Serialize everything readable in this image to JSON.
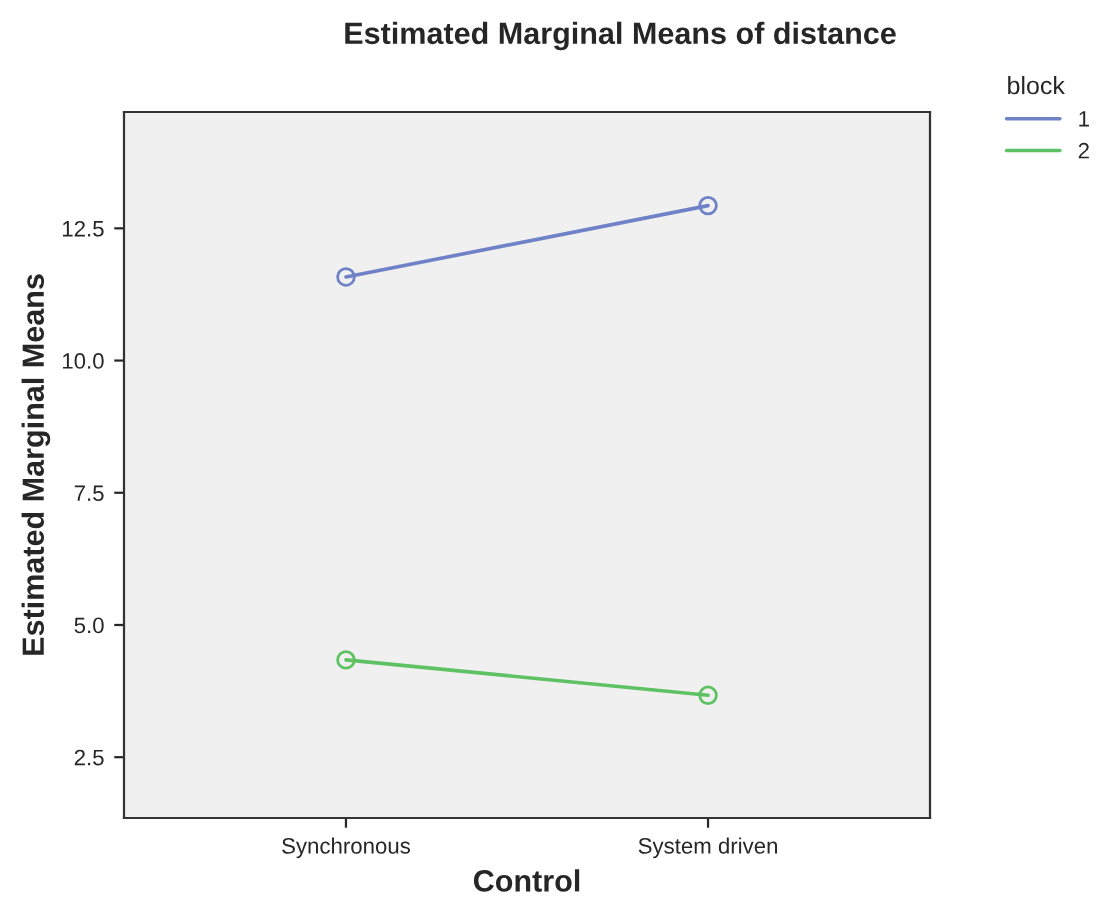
{
  "chart_data": {
    "type": "line",
    "title": "Estimated Marginal Means of distance",
    "xlabel": "Control",
    "ylabel": "Estimated Marginal Means",
    "legend_title": "block",
    "categories": [
      "Synchronous",
      "System driven"
    ],
    "series": [
      {
        "name": "1",
        "color": "#6f82c8",
        "values": [
          11.58,
          12.93
        ]
      },
      {
        "name": "2",
        "color": "#5ec264",
        "values": [
          4.34,
          3.67
        ]
      }
    ],
    "ylim": [
      1.35,
      14.7
    ],
    "yticks": [
      {
        "value": 2.5,
        "label": "2.5"
      },
      {
        "value": 5,
        "label": "5.0"
      },
      {
        "value": 7.5,
        "label": "7.5"
      },
      {
        "value": 10,
        "label": "10.0"
      },
      {
        "value": 12.5,
        "label": "12.5"
      }
    ],
    "grid": false,
    "legend": "top right",
    "marker": "circle",
    "line_style": "solid"
  }
}
